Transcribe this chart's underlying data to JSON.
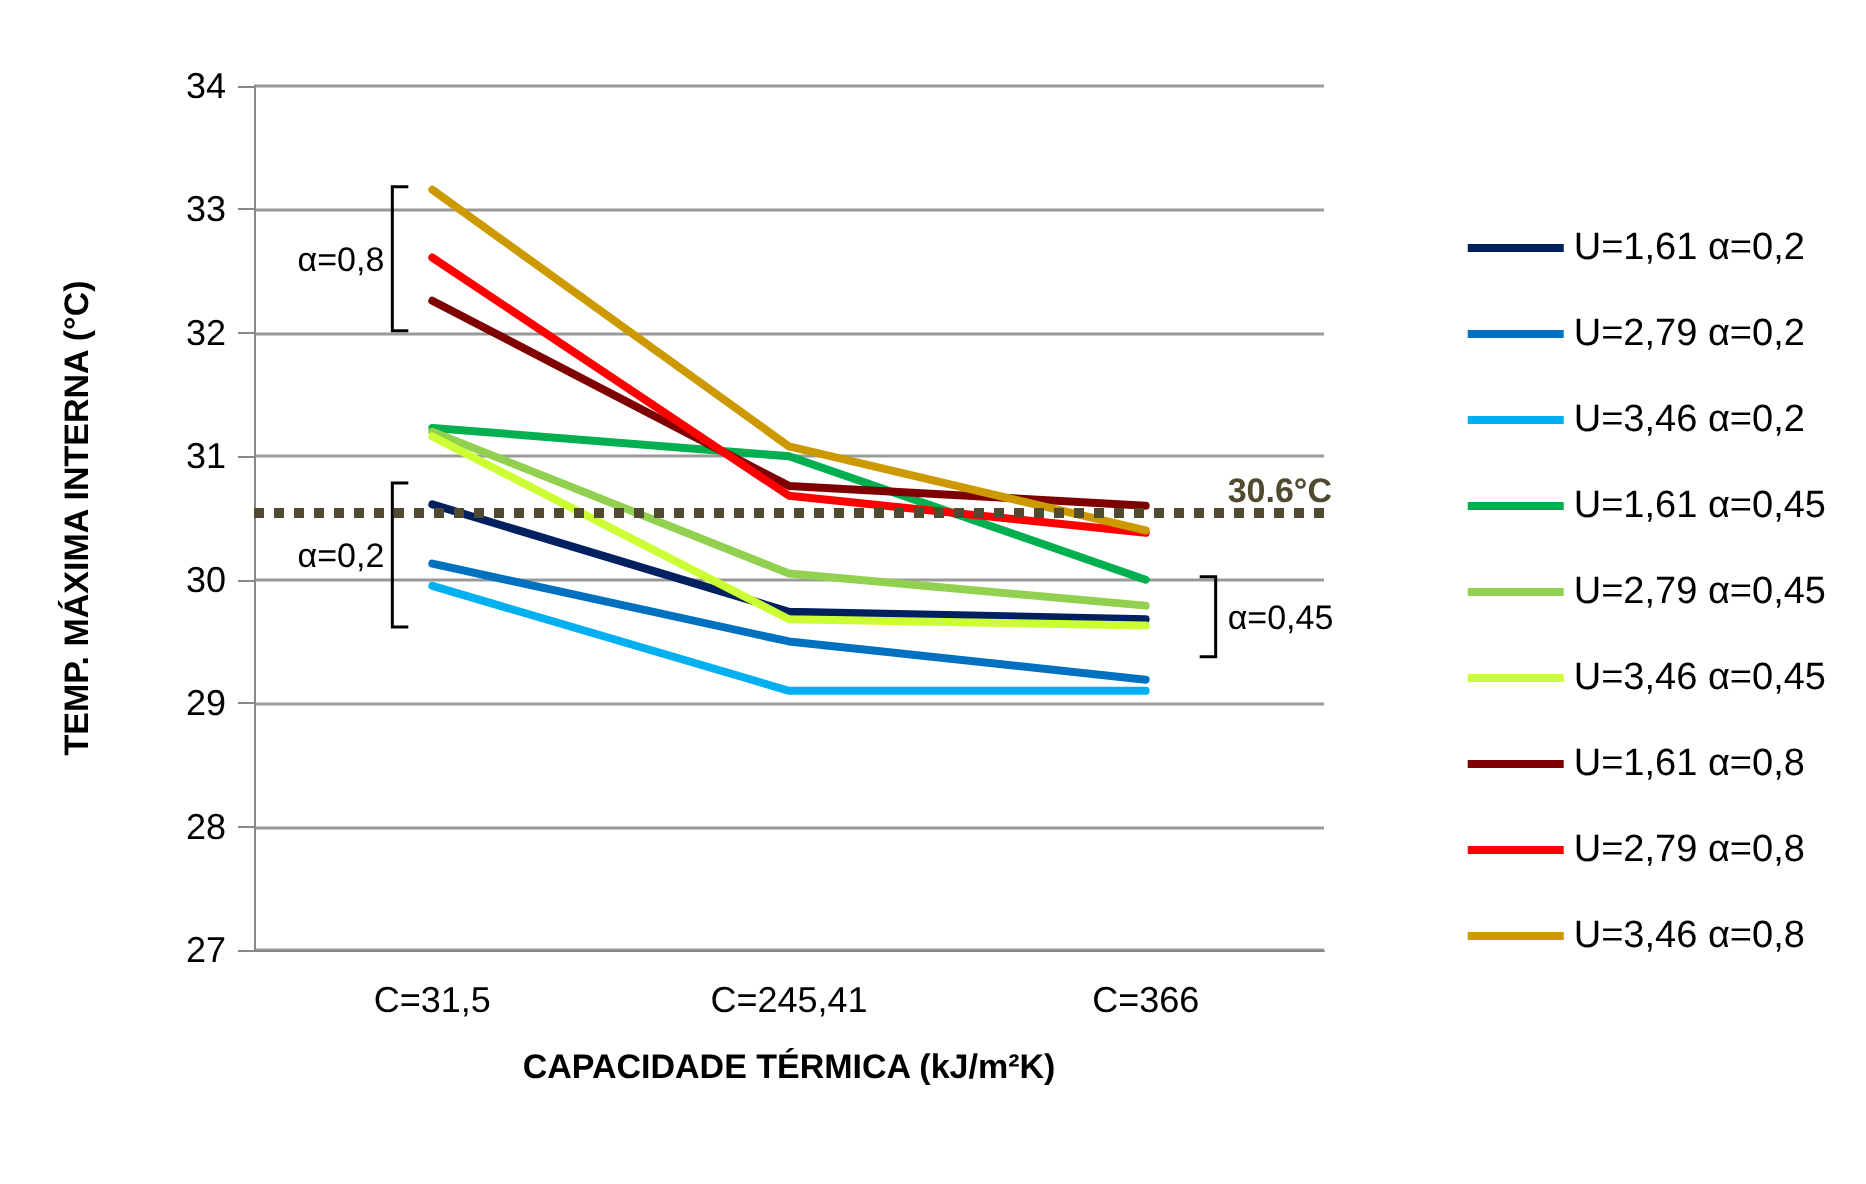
{
  "chart_data": {
    "type": "line",
    "xlabel": "CAPACIDADE TÉRMICA (kJ/m²K)",
    "ylabel": "TEMP. MÁXIMA INTERNA (°C)",
    "categories": [
      "C=31,5",
      "C=245,41",
      "C=366"
    ],
    "series": [
      {
        "name": "U=1,61 α=0,2",
        "color": "#002060",
        "values": [
          30.61,
          29.74,
          29.68
        ]
      },
      {
        "name": "U=2,79 α=0,2",
        "color": "#0070c0",
        "values": [
          30.13,
          29.5,
          29.19
        ]
      },
      {
        "name": "U=3,46 α=0,2",
        "color": "#00b0f0",
        "values": [
          29.95,
          29.1,
          29.1
        ]
      },
      {
        "name": "U=1,61 α=0,45",
        "color": "#00b050",
        "values": [
          31.23,
          31.0,
          30.0
        ]
      },
      {
        "name": "U=2,79 α=0,45",
        "color": "#92d050",
        "values": [
          31.2,
          30.05,
          29.79
        ]
      },
      {
        "name": "U=3,46 α=0,45",
        "color": "#ccff33",
        "values": [
          31.16,
          29.68,
          29.63
        ]
      },
      {
        "name": "U=1,61 α=0,8",
        "color": "#7f0000",
        "values": [
          32.26,
          30.76,
          30.6
        ]
      },
      {
        "name": "U=2,79 α=0,8",
        "color": "#ff0000",
        "values": [
          32.61,
          30.68,
          30.38
        ]
      },
      {
        "name": "U=3,46 α=0,8",
        "color": "#cc9900",
        "values": [
          33.16,
          31.08,
          30.4
        ]
      }
    ],
    "ylim": [
      27,
      34
    ],
    "yticks": [
      27,
      28,
      29,
      30,
      31,
      32,
      33,
      34
    ],
    "grid": "y",
    "legend": "right",
    "marker": "none",
    "line_style": "solid",
    "ref_lines": [
      {
        "axis": "y",
        "value": 30.55,
        "label": "30.6°C",
        "color": "#4f4a30",
        "line_style": "dotted"
      }
    ],
    "annotations": [
      {
        "text": "α=0,8",
        "x": "C=31,5",
        "y": 32.6
      },
      {
        "text": "α=0,2",
        "x": "C=31,5",
        "y": 30.2
      },
      {
        "text": "α=0,45",
        "x": "C=366",
        "y": 29.7
      }
    ]
  }
}
